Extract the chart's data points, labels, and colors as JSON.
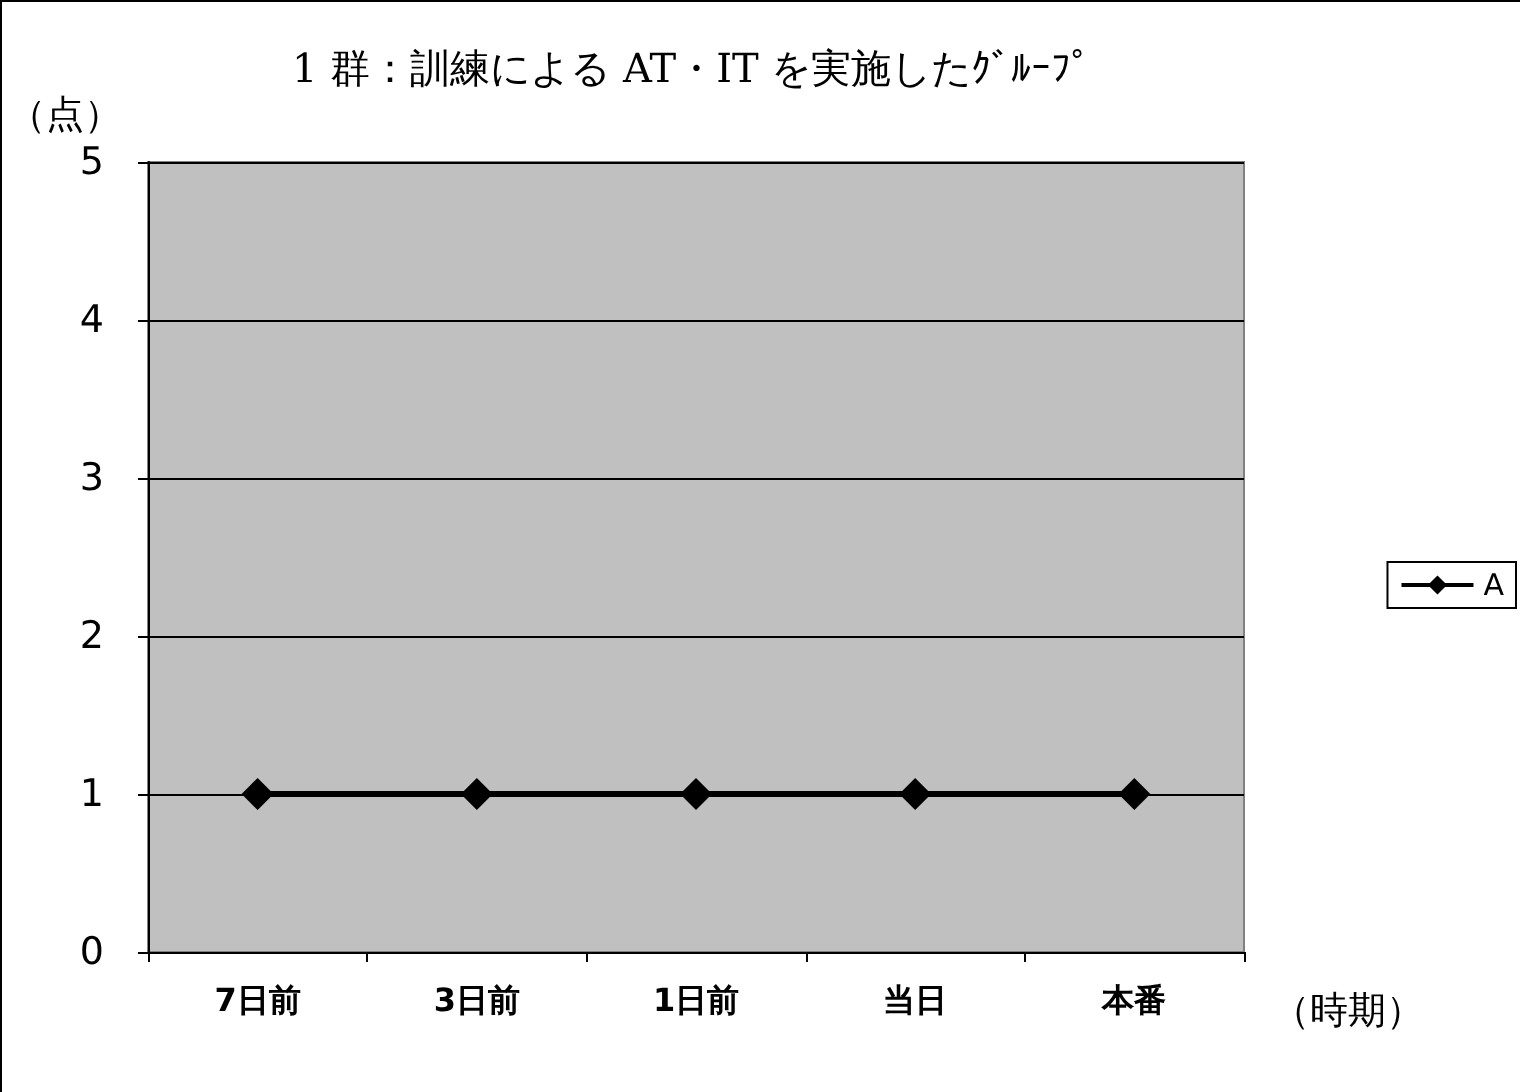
{
  "chart_data": {
    "type": "line",
    "title": "1 群：訓練による AT・IT を実施したｸﾞﾙｰﾌﾟ",
    "ylabel": "（点）",
    "xlabel": "（時期）",
    "categories": [
      "7日前",
      "3日前",
      "1日前",
      "当日",
      "本番"
    ],
    "series": [
      {
        "name": "A",
        "color": "#000000",
        "values": [
          1,
          1,
          1,
          1,
          1
        ]
      }
    ],
    "ylim": [
      0,
      5
    ],
    "yticks": [
      0,
      1,
      2,
      3,
      4,
      5
    ],
    "grid": "y",
    "legend": "right",
    "marker": "diamond",
    "line_style": "solid"
  }
}
